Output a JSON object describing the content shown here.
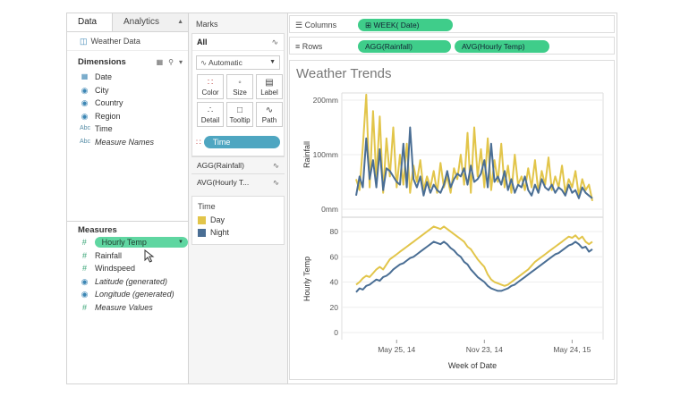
{
  "data_pane": {
    "tabs": [
      {
        "label": "Data",
        "active": true
      },
      {
        "label": "Analytics",
        "active": false
      }
    ],
    "datasource": "Weather Data",
    "dimensions_header": "Dimensions",
    "dimensions": [
      {
        "label": "Date",
        "icon": "calendar-icon",
        "italic": false
      },
      {
        "label": "City",
        "icon": "globe-icon",
        "italic": false
      },
      {
        "label": "Country",
        "icon": "globe-icon",
        "italic": false
      },
      {
        "label": "Region",
        "icon": "globe-icon",
        "italic": false
      },
      {
        "label": "Time",
        "icon": "abc-icon",
        "italic": false
      },
      {
        "label": "Measure Names",
        "icon": "abc-icon",
        "italic": true
      }
    ],
    "measures_header": "Measures",
    "measures": [
      {
        "label": "Hourly Temp",
        "icon": "number-icon",
        "italic": false,
        "dragging": true
      },
      {
        "label": "Rainfall",
        "icon": "number-icon",
        "italic": false
      },
      {
        "label": "Windspeed",
        "icon": "number-icon",
        "italic": false
      },
      {
        "label": "Latitude (generated)",
        "icon": "globe-icon",
        "italic": true
      },
      {
        "label": "Longitude (generated)",
        "icon": "globe-icon",
        "italic": true
      },
      {
        "label": "Measure Values",
        "icon": "number-icon",
        "italic": true
      }
    ],
    "abc_glyph": "Abc"
  },
  "marks": {
    "label": "Marks",
    "all_label": "All",
    "mark_type": "Automatic",
    "buttons": [
      {
        "label": "Color",
        "icon": "color-icon"
      },
      {
        "label": "Size",
        "icon": "size-icon"
      },
      {
        "label": "Label",
        "icon": "label-icon"
      },
      {
        "label": "Detail",
        "icon": "detail-icon"
      },
      {
        "label": "Tooltip",
        "icon": "tooltip-icon"
      },
      {
        "label": "Path",
        "icon": "path-icon"
      }
    ],
    "color_pill": "Time",
    "sub_cards": [
      "AGG(Rainfall)",
      "AVG(Hourly T..."
    ]
  },
  "legend": {
    "title": "Time",
    "items": [
      {
        "label": "Day",
        "color": "#e2c54a"
      },
      {
        "label": "Night",
        "color": "#4a6e94"
      }
    ]
  },
  "shelves": {
    "columns_label": "Columns",
    "columns_pills": [
      "WEEK( Date)"
    ],
    "rows_label": "Rows",
    "rows_pills": [
      "AGG(Rainfall)",
      "AVG(Hourly Temp)"
    ]
  },
  "view": {
    "title": "Weather Trends"
  },
  "chart_data": [
    {
      "type": "line",
      "ylabel": "Rainfall",
      "ylim": [
        0,
        200
      ],
      "yticks": [
        "0mm",
        "100mm",
        "200mm"
      ],
      "x": [
        0,
        1,
        2,
        3,
        4,
        5,
        6,
        7,
        8,
        9,
        10,
        11,
        12,
        13,
        14,
        15,
        16,
        17,
        18,
        19,
        20,
        21,
        22,
        23,
        24,
        25,
        26,
        27,
        28,
        29,
        30,
        31,
        32,
        33,
        34,
        35,
        36,
        37,
        38,
        39,
        40,
        41,
        42,
        43,
        44,
        45,
        46,
        47,
        48,
        49,
        50,
        51,
        52,
        53,
        54,
        55,
        56,
        57,
        58,
        59,
        60,
        61,
        62,
        63,
        64,
        65,
        66,
        67,
        68,
        69,
        70
      ],
      "series": [
        {
          "name": "Day",
          "color": "#e2c54a",
          "values": [
            55,
            35,
            115,
            210,
            40,
            180,
            55,
            170,
            30,
            130,
            60,
            150,
            40,
            100,
            45,
            120,
            30,
            80,
            50,
            90,
            35,
            60,
            40,
            70,
            30,
            85,
            40,
            60,
            30,
            75,
            55,
            100,
            45,
            140,
            30,
            150,
            60,
            110,
            40,
            130,
            35,
            90,
            50,
            120,
            40,
            80,
            30,
            100,
            45,
            60,
            35,
            75,
            40,
            90,
            30,
            70,
            45,
            95,
            35,
            60,
            40,
            80,
            30,
            55,
            40,
            70,
            25,
            55,
            35,
            45,
            15
          ]
        },
        {
          "name": "Night",
          "color": "#4a6e94",
          "values": [
            25,
            60,
            40,
            130,
            55,
            90,
            40,
            110,
            35,
            75,
            70,
            60,
            50,
            45,
            120,
            40,
            150,
            55,
            40,
            60,
            25,
            50,
            30,
            45,
            35,
            30,
            45,
            70,
            40,
            55,
            65,
            60,
            75,
            45,
            80,
            50,
            55,
            65,
            90,
            40,
            120,
            50,
            60,
            45,
            70,
            35,
            55,
            30,
            45,
            40,
            60,
            35,
            25,
            45,
            30,
            55,
            40,
            35,
            45,
            30,
            40,
            35,
            25,
            45,
            30,
            35,
            20,
            40,
            30,
            25,
            20
          ]
        }
      ]
    },
    {
      "type": "line",
      "ylabel": "Hourly Temp",
      "xlabel": "Week of Date",
      "ylim": [
        0,
        85
      ],
      "yticks": [
        "0",
        "20",
        "40",
        "60",
        "80"
      ],
      "xticks": [
        {
          "label": "May 25, 14",
          "x": 12
        },
        {
          "label": "Nov 23, 14",
          "x": 38
        },
        {
          "label": "May 24, 15",
          "x": 64
        }
      ],
      "x": [
        0,
        1,
        2,
        3,
        4,
        5,
        6,
        7,
        8,
        9,
        10,
        11,
        12,
        13,
        14,
        15,
        16,
        17,
        18,
        19,
        20,
        21,
        22,
        23,
        24,
        25,
        26,
        27,
        28,
        29,
        30,
        31,
        32,
        33,
        34,
        35,
        36,
        37,
        38,
        39,
        40,
        41,
        42,
        43,
        44,
        45,
        46,
        47,
        48,
        49,
        50,
        51,
        52,
        53,
        54,
        55,
        56,
        57,
        58,
        59,
        60,
        61,
        62,
        63,
        64,
        65,
        66,
        67,
        68,
        69,
        70
      ],
      "series": [
        {
          "name": "Day",
          "color": "#e2c54a",
          "values": [
            38,
            40,
            43,
            45,
            44,
            47,
            50,
            52,
            50,
            54,
            58,
            60,
            62,
            64,
            66,
            68,
            70,
            72,
            74,
            76,
            78,
            80,
            82,
            84,
            83,
            82,
            84,
            82,
            80,
            78,
            76,
            74,
            72,
            68,
            66,
            62,
            58,
            55,
            52,
            46,
            42,
            40,
            39,
            38,
            37,
            38,
            40,
            42,
            44,
            46,
            48,
            50,
            53,
            56,
            58,
            60,
            62,
            64,
            66,
            68,
            70,
            72,
            74,
            76,
            75,
            77,
            74,
            76,
            72,
            70,
            72
          ]
        },
        {
          "name": "Night",
          "color": "#4a6e94",
          "values": [
            32,
            35,
            34,
            37,
            38,
            40,
            42,
            41,
            44,
            45,
            47,
            50,
            52,
            54,
            55,
            57,
            59,
            60,
            62,
            64,
            66,
            68,
            70,
            72,
            71,
            70,
            72,
            70,
            67,
            65,
            62,
            60,
            56,
            54,
            50,
            47,
            44,
            42,
            40,
            37,
            35,
            34,
            33,
            33,
            34,
            35,
            37,
            38,
            40,
            42,
            44,
            46,
            48,
            50,
            52,
            54,
            56,
            58,
            60,
            62,
            63,
            65,
            67,
            69,
            70,
            72,
            70,
            67,
            68,
            64,
            66
          ]
        }
      ]
    }
  ]
}
